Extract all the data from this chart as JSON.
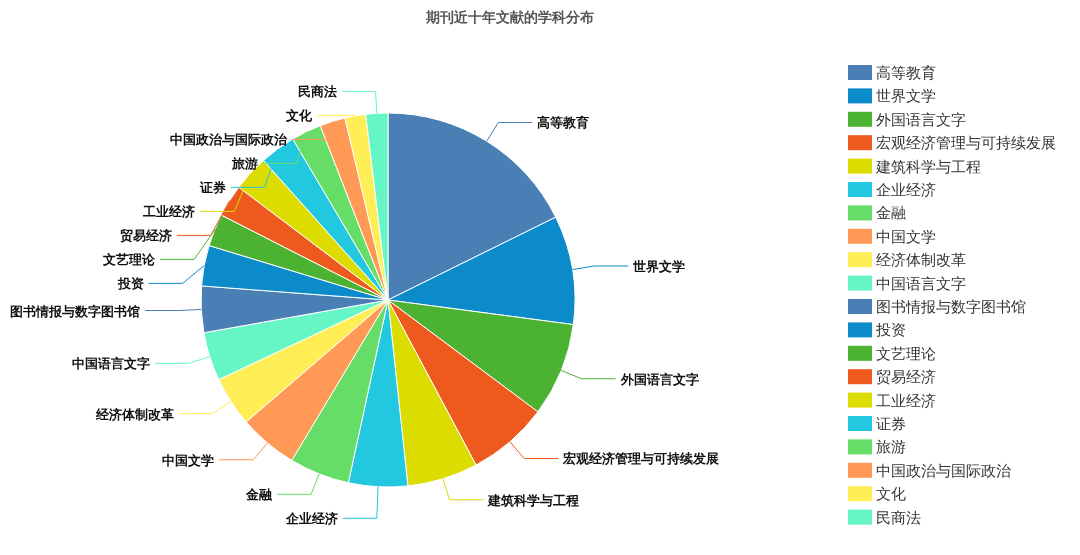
{
  "chart_data": {
    "type": "pie",
    "title": "期刊近十年文献的学科分布",
    "categories": [
      "高等教育",
      "世界文学",
      "外国语言文字",
      "宏观经济管理与可持续发展",
      "建筑科学与工程",
      "企业经济",
      "金融",
      "中国文学",
      "经济体制改革",
      "中国语言文字",
      "图书情报与数字图书馆",
      "投资",
      "文艺理论",
      "贸易经济",
      "工业经济",
      "证券",
      "旅游",
      "中国政治与国际政治",
      "文化",
      "民商法"
    ],
    "values": [
      17.7,
      9.4,
      8.1,
      7.0,
      6.1,
      5.1,
      5.2,
      5.1,
      4.3,
      4.2,
      4.0,
      3.5,
      2.8,
      2.8,
      3.1,
      3.1,
      2.6,
      2.2,
      1.8,
      1.9
    ],
    "colors": [
      "#4a7fb5",
      "#0b8bc9",
      "#4cb232",
      "#ee5a1e",
      "#dcdc00",
      "#22c8e0",
      "#66dd66",
      "#ff9955",
      "#ffee55",
      "#66f5c5",
      "#4a7fb5",
      "#0b8bc9",
      "#4cb232",
      "#ee5a1e",
      "#dcdc00",
      "#22c8e0",
      "#66dd66",
      "#ff9955",
      "#ffee55",
      "#66f5c5"
    ],
    "legend": "right"
  }
}
